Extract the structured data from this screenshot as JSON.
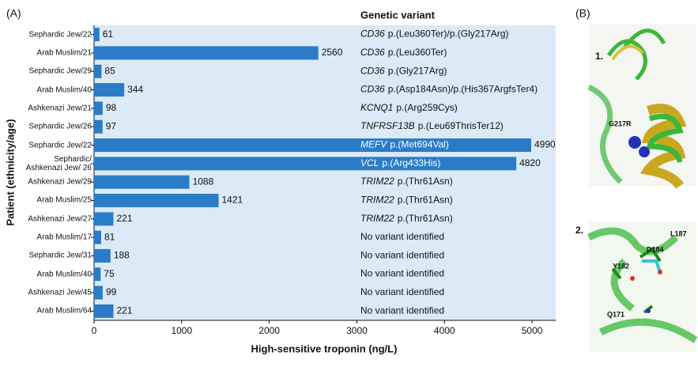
{
  "chart_data": {
    "type": "barh",
    "panel_label": "(A)",
    "xlabel": "High-sensitive troponin (ng/L)",
    "ylabel": "Patient (ethnicity/age)",
    "variant_header": "Genetic variant",
    "categories": [
      "Sephardic Jew/22",
      "Arab Muslim/21",
      "Sephardic Jew/29",
      "Arab Muslim/40",
      "Ashkenazi Jew/21",
      "Sephardic Jew/26",
      "Sephardic Jew/22",
      "Sephardic/\nAshkenazi Jew/ 26",
      "Ashkenazi Jew/29",
      "Arab Muslim/25",
      "Ashkenazi Jew/27",
      "Arab Muslim/17",
      "Sephardic Jew/31",
      "Arab Muslim/40",
      "Ashkenazi Jew/45",
      "Arab Muslim/64"
    ],
    "values": [
      61,
      2560,
      85,
      344,
      98,
      97,
      4990,
      4820,
      1088,
      1421,
      221,
      81,
      188,
      75,
      99,
      221
    ],
    "variants": [
      {
        "gene": "CD36",
        "change": "p.(Leu360Ter)/p.(Gly217Arg)"
      },
      {
        "gene": "CD36",
        "change": "p.(Leu360Ter)"
      },
      {
        "gene": "CD36",
        "change": "p.(Gly217Arg)"
      },
      {
        "gene": "CD36",
        "change": "p.(Asp184Asn)/p.(His367ArgfsTer4)"
      },
      {
        "gene": "KCNQ1",
        "change": "p.(Arg259Cys)"
      },
      {
        "gene": "TNFRSF13B",
        "change": "p.(Leu69ThrisTer12)"
      },
      {
        "gene": "MEFV",
        "change": "p.(Met694Val)"
      },
      {
        "gene": "VCL",
        "change": "p.(Arg433His)"
      },
      {
        "gene": "TRIM22",
        "change": "p.(Thr61Asn)"
      },
      {
        "gene": "TRIM22",
        "change": "p.(Thr61Asn)"
      },
      {
        "gene": "TRIM22",
        "change": "p.(Thr61Asn)"
      },
      {
        "change": "No variant identified"
      },
      {
        "change": "No variant identified"
      },
      {
        "change": "No variant identified"
      },
      {
        "change": "No variant identified"
      },
      {
        "change": "No variant identified"
      }
    ],
    "color": "#2b7cc7",
    "background": "#dbeaf6",
    "xlim": [
      0,
      5270
    ],
    "xticks": [
      0,
      1000,
      2000,
      3000,
      4000,
      5000
    ]
  },
  "structure_panel": {
    "panel_label": "(B)",
    "view1": "1.",
    "view2": "2.",
    "view1_residues": [
      "G217R"
    ],
    "view2_residues": [
      "Y182",
      "D184",
      "L187",
      "Q171"
    ]
  }
}
